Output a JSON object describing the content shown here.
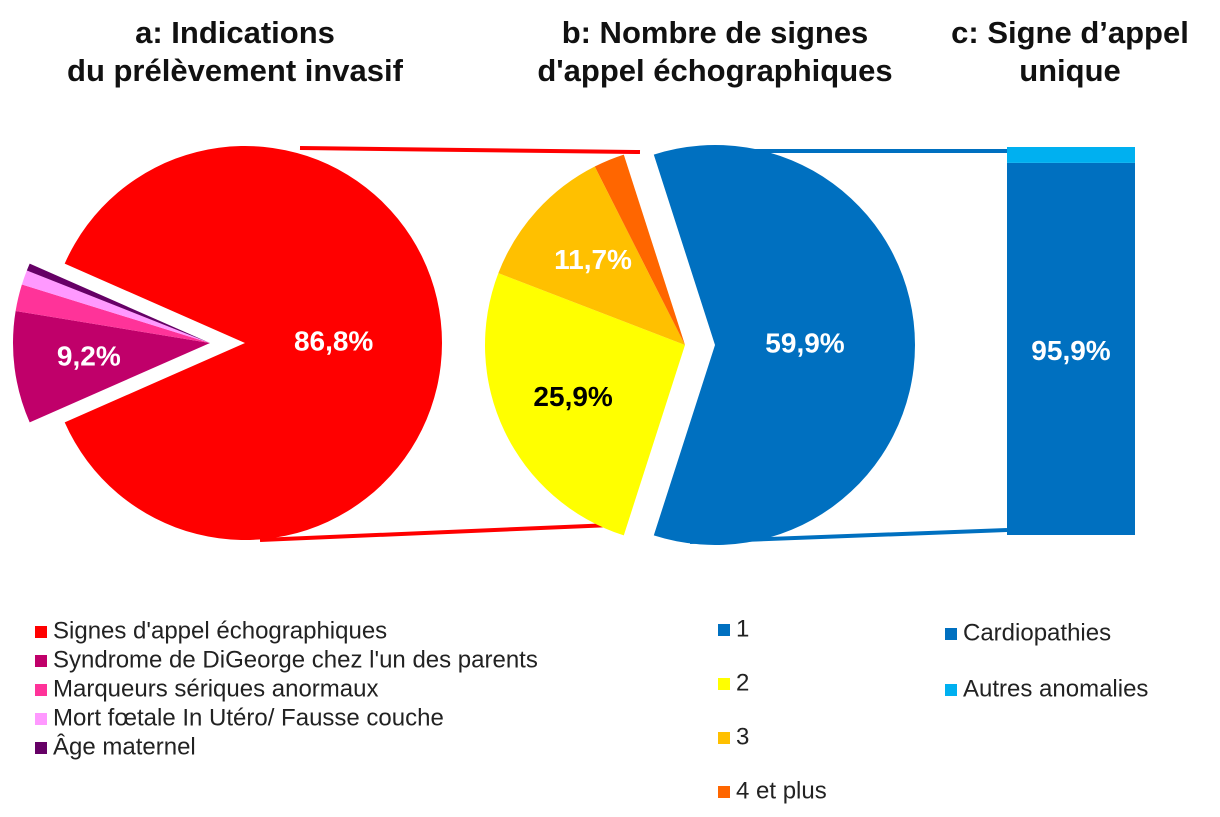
{
  "chart_data": [
    {
      "type": "pie",
      "title": "a: Indications\ndu prélèvement invasif",
      "categories": [
        "Signes d'appel échographiques",
        "Syndrome de DiGeorge chez l'un des parents",
        "Marqueurs sériques anormaux",
        "Mort fœtale In Utéro/ Fausse couche",
        "Âge maternel"
      ],
      "values": [
        86.8,
        9.2,
        2.2,
        1.2,
        0.6
      ],
      "value_labels": [
        "86,8%",
        "9,2%",
        null,
        null,
        null
      ],
      "colors": [
        "#ff0000",
        "#c0006a",
        "#ff3399",
        "#ff99ff",
        "#660066"
      ]
    },
    {
      "type": "pie",
      "title": "b: Nombre de signes\nd'appel échographiques",
      "categories": [
        "1",
        "2",
        "3",
        "4 et plus"
      ],
      "values": [
        59.9,
        25.9,
        11.7,
        2.5
      ],
      "value_labels": [
        "59,9%",
        "25,9%",
        "11,7%",
        null
      ],
      "colors": [
        "#0070c0",
        "#ffff00",
        "#ffc000",
        "#ff6600"
      ]
    },
    {
      "type": "bar",
      "title": "c: Signe d’appel\nunique",
      "stacked": true,
      "series": [
        {
          "name": "Cardiopathies",
          "color": "#0070c0",
          "values": [
            95.9
          ],
          "value_labels": [
            "95,9%"
          ]
        },
        {
          "name": "Autres anomalies",
          "color": "#00b0f0",
          "values": [
            4.1
          ]
        }
      ]
    }
  ]
}
